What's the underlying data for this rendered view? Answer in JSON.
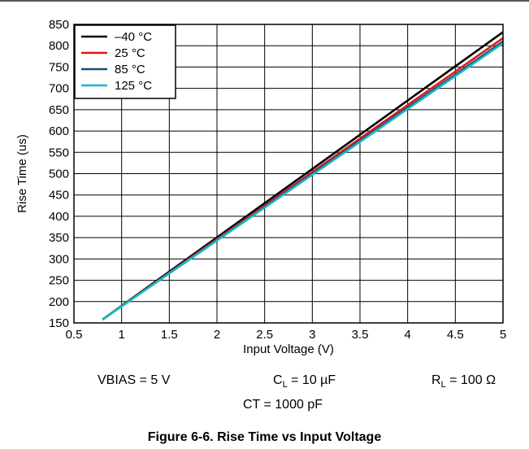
{
  "chart_data": {
    "type": "line",
    "xlabel": "Input Voltage (V)",
    "ylabel": "Rise Time (us)",
    "xlim": [
      0.5,
      5
    ],
    "ylim": [
      150,
      850
    ],
    "xticks": [
      "0.5",
      "1",
      "1.5",
      "2",
      "2.5",
      "3",
      "3.5",
      "4",
      "4.5",
      "5"
    ],
    "yticks": [
      "150",
      "200",
      "250",
      "300",
      "350",
      "400",
      "450",
      "500",
      "550",
      "600",
      "650",
      "700",
      "750",
      "800",
      "850"
    ],
    "grid": true,
    "legend_position": "top-left",
    "series": [
      {
        "name": "–40 °C",
        "color": "#000000",
        "x": [
          0.8,
          5
        ],
        "y": [
          158,
          832
        ]
      },
      {
        "name": "25 °C",
        "color": "#e0181b",
        "x": [
          0.8,
          5
        ],
        "y": [
          158,
          818
        ]
      },
      {
        "name": "85 °C",
        "color": "#1b4f72",
        "x": [
          0.8,
          5
        ],
        "y": [
          158,
          810
        ]
      },
      {
        "name": "125 °C",
        "color": "#17b8c8",
        "x": [
          0.8,
          5
        ],
        "y": [
          158,
          806
        ]
      }
    ]
  },
  "conditions": {
    "vbias": "VBIAS = 5 V",
    "cl_main": "C",
    "cl_sub": "L",
    "cl_rest": " = 10 µF",
    "rl_main": "R",
    "rl_sub": "L",
    "rl_rest": " = 100 Ω",
    "ct": "CT = 1000 pF"
  },
  "caption": "Figure 6-6. Rise Time vs Input Voltage"
}
